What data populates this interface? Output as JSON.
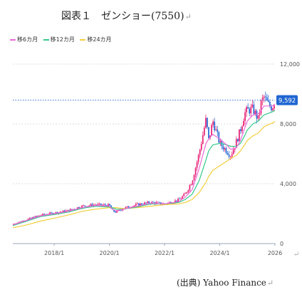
{
  "figure_title": "図表１　ゼンショー(7550)",
  "return_glyph": "↵",
  "source_text": "(出典) Yahoo Finance",
  "colors": {
    "ma6": "#e96ad8",
    "ma12": "#34c98a",
    "ma24": "#f2cf3c",
    "up": "#e8287a",
    "down": "#2f6fd6",
    "grid": "#d8dde6",
    "axis": "#9aa6b6",
    "current": "#2f6fd6",
    "current_label_bg": "#1f66d1"
  },
  "chart_data": {
    "type": "candlestick",
    "title": "",
    "legend": [
      {
        "key": "ma6",
        "label": "移6カ月"
      },
      {
        "key": "ma12",
        "label": "移12カ月"
      },
      {
        "key": "ma24",
        "label": "移24カ月"
      }
    ],
    "legend_position": "top-left",
    "y_axis_side": "right",
    "ylim": [
      0,
      12000
    ],
    "yticks": [
      0,
      4000,
      8000,
      12000
    ],
    "ytick_labels": [
      "0",
      "4,000",
      "8,000",
      "12,000"
    ],
    "xlim": [
      2016.5,
      2026.0
    ],
    "xticks": [
      2018.0,
      2020.0,
      2022.0,
      2024.0,
      2026.0
    ],
    "xtick_labels": [
      "2018/1",
      "2020/1",
      "2022/1",
      "2024/1",
      "2026"
    ],
    "current_price": 9592,
    "current_price_label": "9,592",
    "grid": true,
    "price_x": [
      2016.5,
      2017.0,
      2017.5,
      2018.0,
      2018.5,
      2019.0,
      2019.5,
      2020.0,
      2020.1,
      2020.25,
      2020.5,
      2021.0,
      2021.5,
      2022.0,
      2022.5,
      2022.75,
      2023.0,
      2023.25,
      2023.5,
      2023.6,
      2023.75,
      2024.0,
      2024.25,
      2024.4,
      2024.6,
      2024.75,
      2024.9,
      2025.0,
      2025.2,
      2025.4,
      2025.5,
      2025.6,
      2025.75,
      2025.9,
      2026.0
    ],
    "price_y": [
      1300,
      1600,
      1900,
      2050,
      2200,
      2500,
      2600,
      2550,
      2200,
      2100,
      2350,
      2600,
      2750,
      2650,
      2900,
      3300,
      4200,
      6000,
      8300,
      6900,
      8200,
      6700,
      6200,
      5900,
      6800,
      7600,
      8700,
      8900,
      9000,
      8300,
      9400,
      9800,
      9300,
      9100,
      9592
    ],
    "ma6_y": [
      1250,
      1550,
      1850,
      2000,
      2150,
      2400,
      2550,
      2500,
      2300,
      2200,
      2300,
      2500,
      2700,
      2650,
      2800,
      3100,
      3600,
      5000,
      6700,
      7000,
      7300,
      7000,
      6600,
      6300,
      6400,
      6900,
      7700,
      8200,
      8600,
      8700,
      8900,
      9200,
      9200,
      9200,
      9300
    ],
    "ma12_y": [
      1200,
      1500,
      1800,
      1950,
      2100,
      2350,
      2500,
      2450,
      2400,
      2300,
      2300,
      2450,
      2650,
      2650,
      2750,
      2950,
      3300,
      4200,
      5600,
      6200,
      6600,
      6700,
      6600,
      6500,
      6500,
      6700,
      7200,
      7600,
      8000,
      8200,
      8400,
      8600,
      8700,
      8800,
      8900
    ],
    "ma24_y": [
      1050,
      1250,
      1500,
      1700,
      1900,
      2150,
      2300,
      2400,
      2400,
      2400,
      2350,
      2400,
      2500,
      2600,
      2650,
      2750,
      2950,
      3400,
      4100,
      4500,
      4900,
      5200,
      5500,
      5700,
      5900,
      6200,
      6600,
      6900,
      7200,
      7400,
      7600,
      7800,
      7950,
      8050,
      8150
    ]
  }
}
